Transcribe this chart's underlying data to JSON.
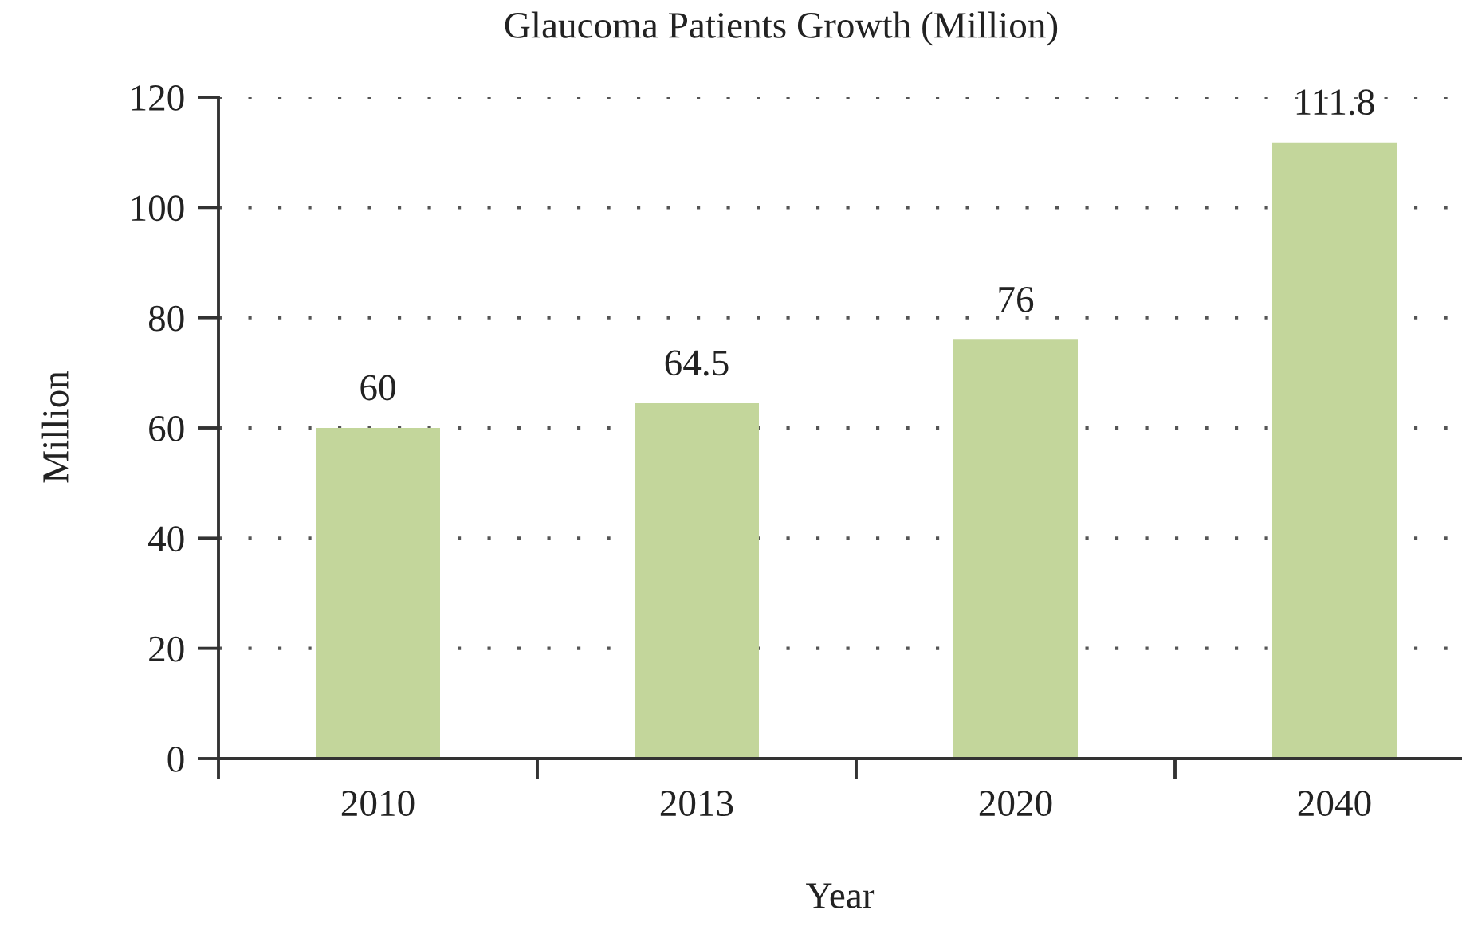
{
  "chart_data": {
    "type": "bar",
    "title": "Glaucoma Patients Growth (Million)",
    "xlabel": "Year",
    "ylabel": "Million",
    "categories": [
      "2010",
      "2013",
      "2020",
      "2040"
    ],
    "values": [
      60,
      64.5,
      76,
      111.8
    ],
    "color": "#c3d69b",
    "ylim": [
      0,
      120
    ],
    "yticks": [
      0,
      20,
      40,
      60,
      80,
      100,
      120
    ],
    "grid": "y",
    "data_labels": true
  }
}
